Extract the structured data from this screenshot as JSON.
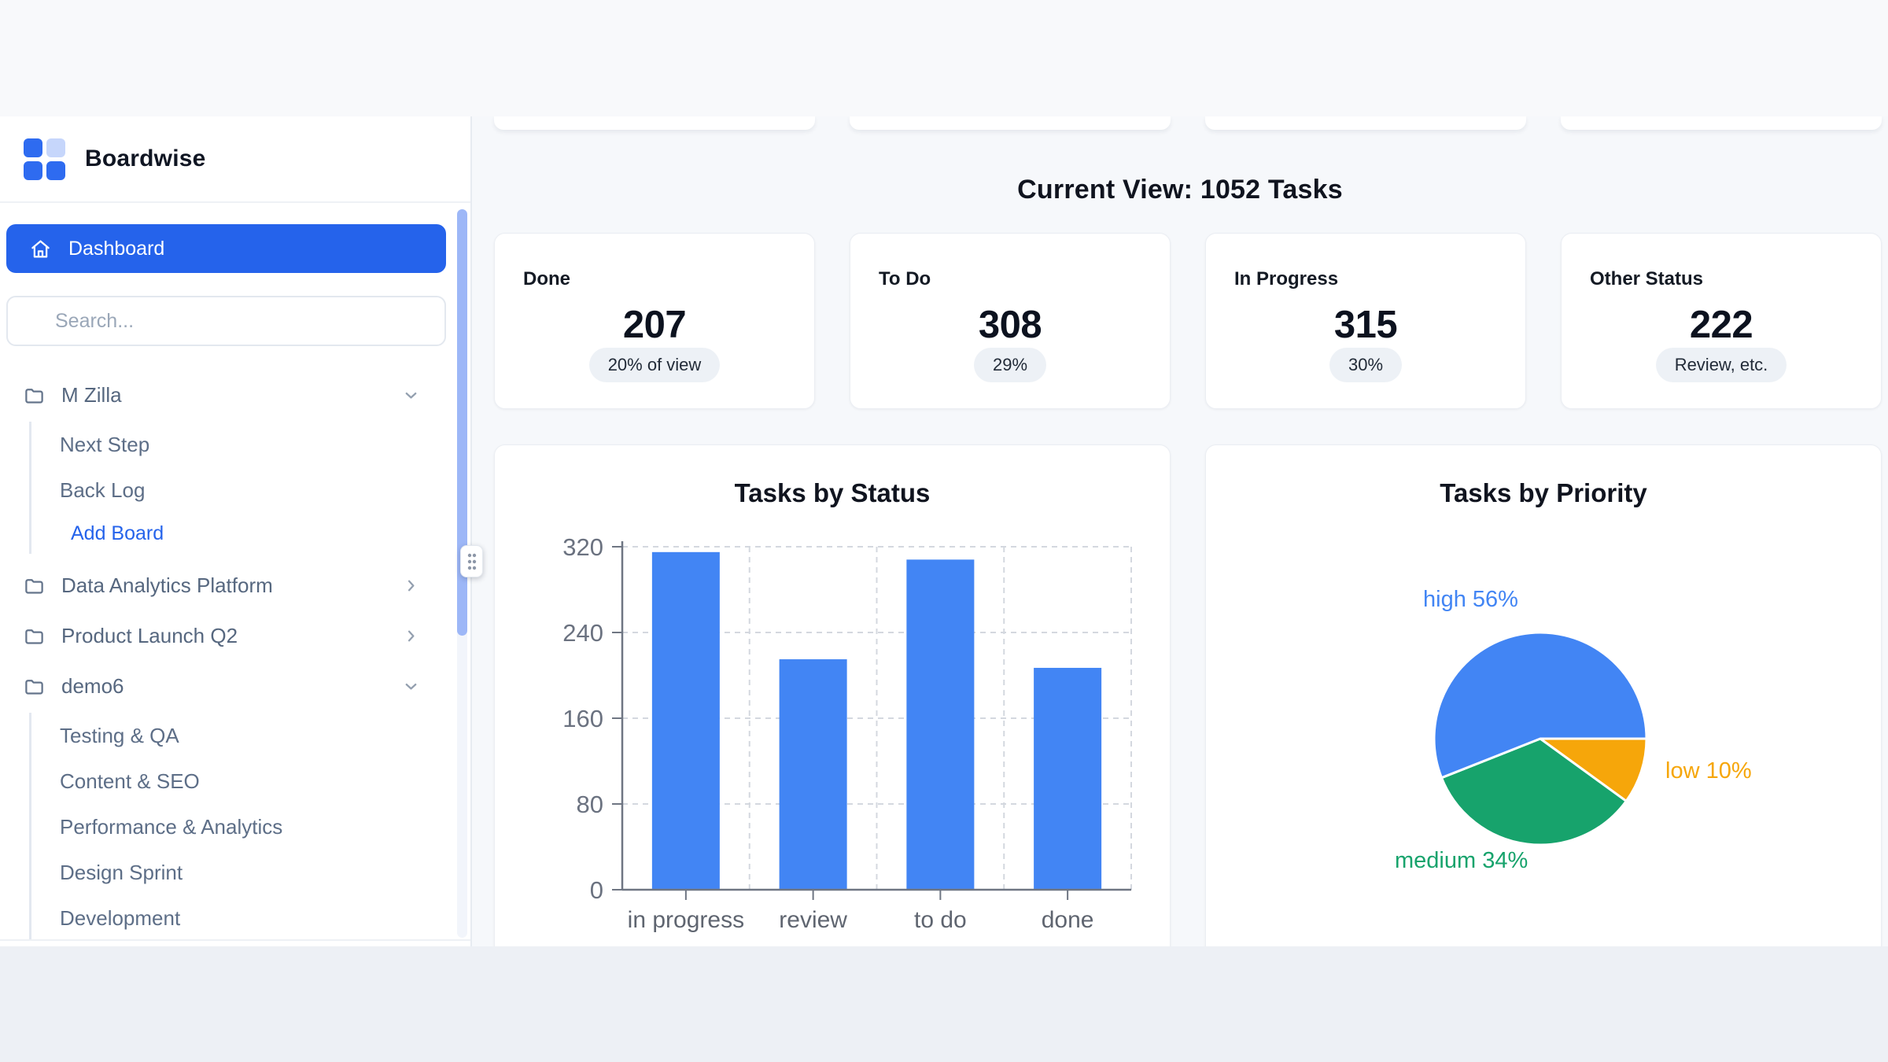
{
  "app": {
    "brand": "Boardwise"
  },
  "sidebar": {
    "dashboard_label": "Dashboard",
    "search_placeholder": "Search...",
    "tree": [
      {
        "label": "M Zilla",
        "expanded": true,
        "children": [
          "Next Step",
          "Back Log"
        ],
        "action": "Add Board"
      },
      {
        "label": "Data Analytics Platform",
        "expanded": false
      },
      {
        "label": "Product Launch Q2",
        "expanded": false
      },
      {
        "label": "demo6",
        "expanded": true,
        "children": [
          "Testing & QA",
          "Content & SEO",
          "Performance & Analytics",
          "Design Sprint",
          "Development"
        ]
      }
    ]
  },
  "main": {
    "heading": "Current View: 1052 Tasks",
    "stats": [
      {
        "label": "Done",
        "value": "207",
        "badge": "20% of view"
      },
      {
        "label": "To Do",
        "value": "308",
        "badge": "29%"
      },
      {
        "label": "In Progress",
        "value": "315",
        "badge": "30%"
      },
      {
        "label": "Other Status",
        "value": "222",
        "badge": "Review, etc."
      }
    ]
  },
  "chart_data": [
    {
      "type": "bar",
      "title": "Tasks by Status",
      "categories": [
        "in progress",
        "review",
        "to do",
        "done"
      ],
      "values": [
        315,
        215,
        308,
        207
      ],
      "xlabel": "",
      "ylabel": "",
      "ylim": [
        0,
        320
      ],
      "yticks": [
        0,
        80,
        160,
        240,
        320
      ],
      "bar_color": "#4285f4",
      "grid": "dashed",
      "legend": "none"
    },
    {
      "type": "pie",
      "title": "Tasks by Priority",
      "slices": [
        {
          "label": "low",
          "pct": 10,
          "color": "#f6a60a",
          "label_text": "low 10%"
        },
        {
          "label": "medium",
          "pct": 34,
          "color": "#17a36c",
          "label_text": "medium 34%"
        },
        {
          "label": "high",
          "pct": 56,
          "color": "#4285f4",
          "label_text": "high 56%"
        }
      ],
      "start_angle": "3-oclock-clockwise",
      "legend": "none"
    }
  ],
  "colors": {
    "accent_blue": "#2563eb",
    "bar_blue": "#4285f4",
    "pie_green": "#17a36c",
    "pie_orange": "#f6a60a",
    "sidebar_text": "#56677f"
  }
}
